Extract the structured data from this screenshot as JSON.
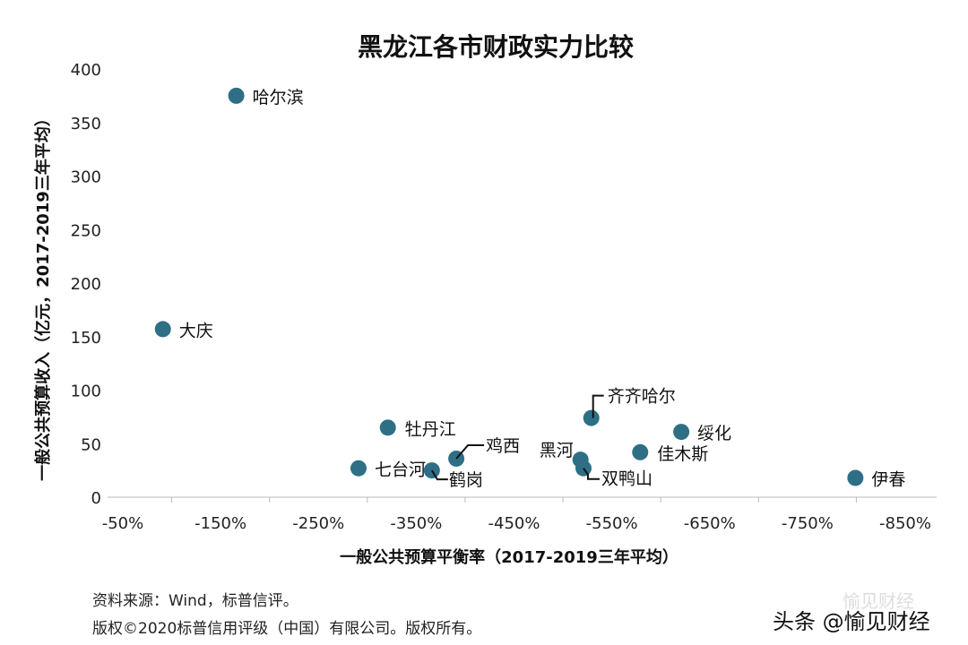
{
  "chart_data": {
    "type": "scatter",
    "title": "黑龙江各市财政实力比较",
    "xlabel": "一般公共预算平衡率（2017-2019三年平均）",
    "ylabel": "一般公共预算收入（亿元，2017-2019三年平均）",
    "xlim": [
      -50,
      -850
    ],
    "ylim": [
      0,
      400
    ],
    "x_ticks": [
      "-50%",
      "-150%",
      "-250%",
      "-350%",
      "-450%",
      "-550%",
      "-650%",
      "-750%",
      "-850%"
    ],
    "y_ticks": [
      "0",
      "50",
      "100",
      "150",
      "200",
      "250",
      "300",
      "350",
      "400"
    ],
    "grid": false,
    "marker_color": "#2e6f86",
    "points": [
      {
        "label": "哈尔滨",
        "x": -166,
        "y": 375
      },
      {
        "label": "大庆",
        "x": -91,
        "y": 157
      },
      {
        "label": "牡丹江",
        "x": -321,
        "y": 65
      },
      {
        "label": "七台河",
        "x": -291,
        "y": 27
      },
      {
        "label": "鹤岗",
        "x": -366,
        "y": 25
      },
      {
        "label": "鸡西",
        "x": -391,
        "y": 36
      },
      {
        "label": "齐齐哈尔",
        "x": -529,
        "y": 74
      },
      {
        "label": "黑河",
        "x": -518,
        "y": 35
      },
      {
        "label": "双鸭山",
        "x": -521,
        "y": 27
      },
      {
        "label": "佳木斯",
        "x": -579,
        "y": 42
      },
      {
        "label": "绥化",
        "x": -621,
        "y": 61
      },
      {
        "label": "伊春",
        "x": -799,
        "y": 18
      }
    ]
  },
  "source": "资料来源：Wind，标普信评。",
  "copyright": "版权©2020标普信用评级（中国）有限公司。版权所有。",
  "watermark": "头条 @愉见财经",
  "watermark_faint": "愉见财经"
}
